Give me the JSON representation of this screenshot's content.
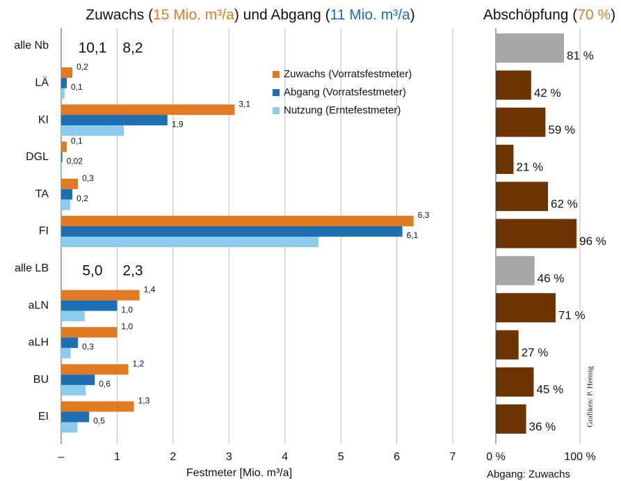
{
  "chart_data": [
    {
      "type": "bar",
      "orientation": "horizontal",
      "title_parts": [
        {
          "text": "Zuwachs ("
        },
        {
          "text": "15 Mio. m³/a",
          "color": "#e07b24"
        },
        {
          "text": ") und Abgang ("
        },
        {
          "text": "11 Mio. m³/a",
          "color": "#1f6fb5"
        },
        {
          "text": ")"
        }
      ],
      "categories": [
        "alle Nb",
        "LÄ",
        "KI",
        "DGL",
        "TA",
        "FI",
        "alle LB",
        "aLN",
        "aLH",
        "BU",
        "EI"
      ],
      "series": [
        {
          "name": "Zuwachs (Vorratsfestmeter)",
          "color": "#e07b24",
          "values": [
            null,
            0.2,
            3.1,
            0.1,
            0.3,
            6.3,
            null,
            1.4,
            1.0,
            1.2,
            1.3
          ],
          "value_labels": [
            null,
            "0,2",
            "3,1",
            "0,1",
            "0,3",
            "6,3",
            null,
            "1,4",
            "1,0",
            "1,2",
            "1,3"
          ]
        },
        {
          "name": "Abgang (Vorratsfestmeter)",
          "color": "#1f6fb5",
          "values": [
            null,
            0.1,
            1.9,
            0.02,
            0.2,
            6.1,
            null,
            1.0,
            0.3,
            0.6,
            0.5
          ],
          "value_labels": [
            null,
            "0,1",
            "1,9",
            "0,02",
            "0,2",
            "6,1",
            null,
            "1,0",
            "0,3",
            "0,6",
            "0,5"
          ]
        },
        {
          "name": "Nutzung (Erntefestmeter)",
          "color": "#8ccbec",
          "values": [
            null,
            0.06,
            1.12,
            0.01,
            0.16,
            4.6,
            null,
            0.42,
            0.17,
            0.44,
            0.29
          ]
        }
      ],
      "totals": [
        {
          "values": [
            10.1,
            8.2
          ],
          "value_labels": [
            "10,1",
            "8,2"
          ]
        },
        {
          "values": [
            5.0,
            2.3
          ],
          "value_labels": [
            "5,0",
            "2,3"
          ]
        }
      ],
      "xlim": [
        0,
        7
      ],
      "xticks": [
        {
          "value": 0,
          "label": "–"
        },
        1,
        2,
        3,
        4,
        5,
        6,
        7
      ],
      "xlabel": "Festmeter [Mio. m³/a]",
      "grid": true,
      "legend": "top-right"
    },
    {
      "type": "bar",
      "orientation": "horizontal",
      "title_parts": [
        {
          "text": "Abschöpfung ("
        },
        {
          "text": "70 %",
          "color": "#e07b24"
        },
        {
          "text": ")"
        }
      ],
      "values": [
        81,
        42,
        59,
        21,
        62,
        96,
        46,
        71,
        27,
        45,
        36
      ],
      "value_labels": [
        "81 %",
        "42 %",
        "59 %",
        "21 %",
        "62 %",
        "96 %",
        "46 %",
        "71 %",
        "27 %",
        "45 %",
        "36 %"
      ],
      "colors": [
        "#a6a6a6",
        "#6b3400",
        "#6b3400",
        "#6b3400",
        "#6b3400",
        "#6b3400",
        "#a6a6a6",
        "#6b3400",
        "#6b3400",
        "#6b3400",
        "#6b3400"
      ],
      "xlim": [
        0,
        100
      ],
      "xticks": [
        {
          "value": 0,
          "label": "0 %"
        },
        {
          "value": 100,
          "label": "100 %"
        }
      ],
      "xlabel": "Abgang: Zuwachs",
      "credit": "Grafiken: P. Hennig",
      "grid": true
    }
  ]
}
